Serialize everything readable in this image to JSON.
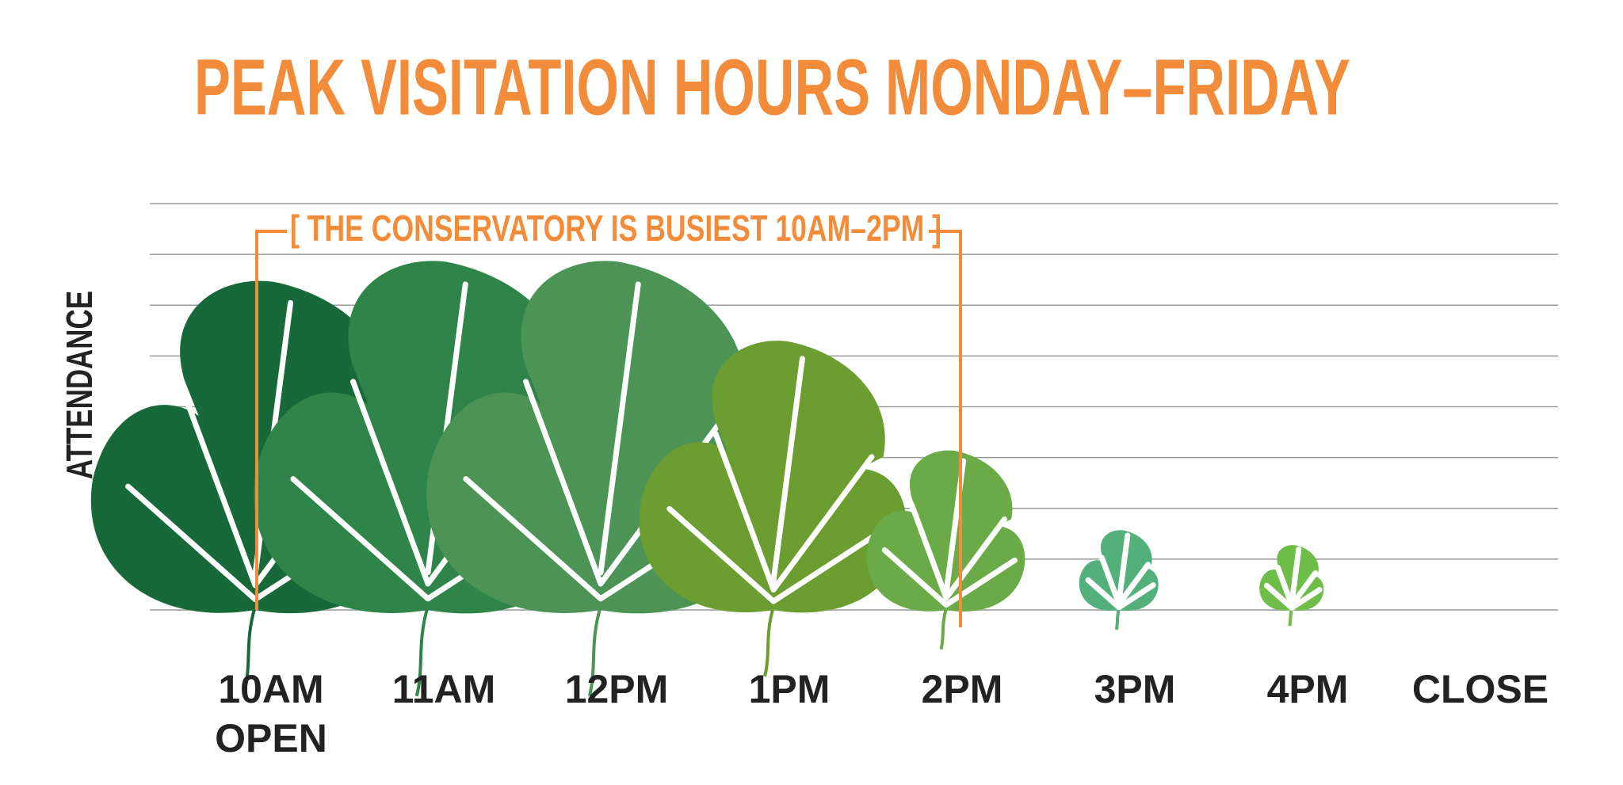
{
  "chart_data": {
    "type": "leaf",
    "title": "PEAK VISITATION HOURS MONDAY–FRIDAY",
    "y_label": "ATTENDANCE",
    "annotation": "[ THE CONSERVATORY IS BUSIEST 10AM–2PM ]",
    "open_label": "OPEN",
    "categories": [
      "10AM",
      "11AM",
      "12PM",
      "1PM",
      "2PM",
      "3PM",
      "4PM",
      "CLOSE"
    ],
    "values": [
      6.6,
      7,
      7,
      5.4,
      3.2,
      1.6,
      1.3,
      null
    ],
    "colors": [
      "#18693a",
      "#2e8449",
      "#4c9456",
      "#6b9d31",
      "#6aab47",
      "#54b07a",
      "#6dbd48",
      "#6dbd48"
    ],
    "ylim": [
      0,
      8
    ],
    "yticks": [
      0,
      1,
      2,
      3,
      4,
      5,
      6,
      7,
      8
    ],
    "grid": true,
    "title_color": "#f28c3a",
    "annotation_color": "#f28c3a"
  }
}
